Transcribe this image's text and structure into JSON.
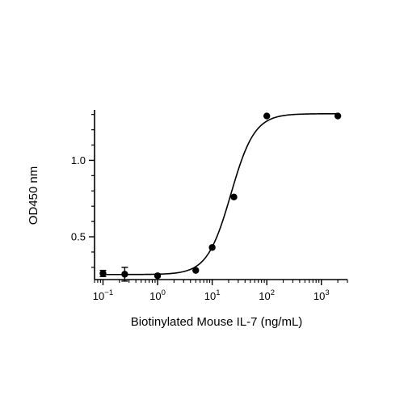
{
  "chart_data": {
    "type": "scatter",
    "xlabel": "Biotinylated Mouse IL-7 (ng/mL)",
    "ylabel": "OD450 nm",
    "x_scale": "log",
    "xlim": [
      0.07,
      3000
    ],
    "ylim": [
      0.22,
      1.33
    ],
    "x_major_ticks": [
      {
        "value": 0.1,
        "base": "10",
        "exp": "−1"
      },
      {
        "value": 1,
        "base": "10",
        "exp": "0"
      },
      {
        "value": 10,
        "base": "10",
        "exp": "1"
      },
      {
        "value": 100,
        "base": "10",
        "exp": "2"
      },
      {
        "value": 1000,
        "base": "10",
        "exp": "3"
      }
    ],
    "y_major_ticks": [
      {
        "value": 0.5,
        "label": "0.5"
      },
      {
        "value": 1.0,
        "label": "1.0"
      }
    ],
    "y_minor_ticks": [
      0.3,
      0.4,
      0.6,
      0.7,
      0.8,
      0.9,
      1.1,
      1.2,
      1.3
    ],
    "points": [
      {
        "x": 0.1,
        "y": 0.26,
        "err": 0.02
      },
      {
        "x": 0.25,
        "y": 0.255,
        "err": 0.045
      },
      {
        "x": 1,
        "y": 0.245
      },
      {
        "x": 5,
        "y": 0.28
      },
      {
        "x": 10,
        "y": 0.43
      },
      {
        "x": 25,
        "y": 0.76
      },
      {
        "x": 100,
        "y": 1.29
      },
      {
        "x": 2000,
        "y": 1.29
      }
    ],
    "fit": {
      "model": "4PL",
      "bottom": 0.253,
      "top": 1.305,
      "ec50": 22,
      "hill": 2.0
    },
    "grid": false,
    "legend": "none",
    "colors": {
      "points": "#000000",
      "line": "#000000",
      "axes": "#000000"
    }
  }
}
